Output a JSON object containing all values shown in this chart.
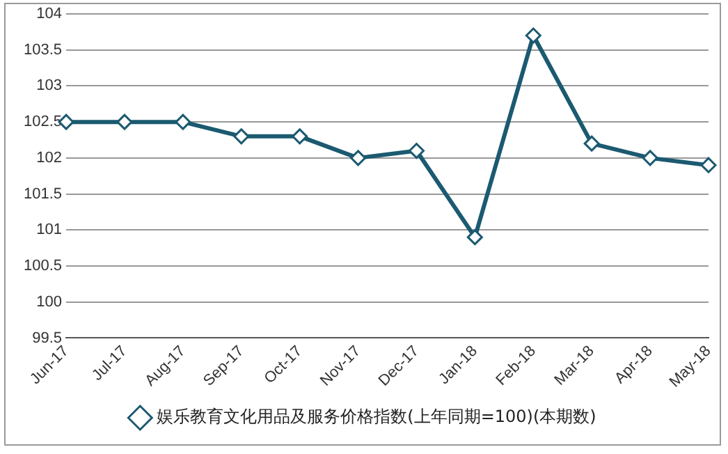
{
  "chart_data": {
    "type": "line",
    "categories": [
      "Jun-17",
      "Jul-17",
      "Aug-17",
      "Sep-17",
      "Oct-17",
      "Nov-17",
      "Dec-17",
      "Jan-18",
      "Feb-18",
      "Mar-18",
      "Apr-18",
      "May-18"
    ],
    "series": [
      {
        "name": "娱乐教育文化用品及服务价格指数(上年同期=100)(本期数)",
        "color": "#1b5a70",
        "values": [
          102.5,
          102.5,
          102.5,
          102.3,
          102.3,
          102.0,
          102.1,
          100.9,
          103.7,
          102.2,
          102.0,
          101.9
        ]
      }
    ],
    "ylim": [
      99.5,
      104
    ],
    "yticks": [
      99.5,
      100,
      100.5,
      101,
      101.5,
      102,
      102.5,
      103,
      103.5,
      104
    ],
    "grid": "y",
    "legend": "bottom",
    "marker": "diamond",
    "line_style": "solid"
  }
}
